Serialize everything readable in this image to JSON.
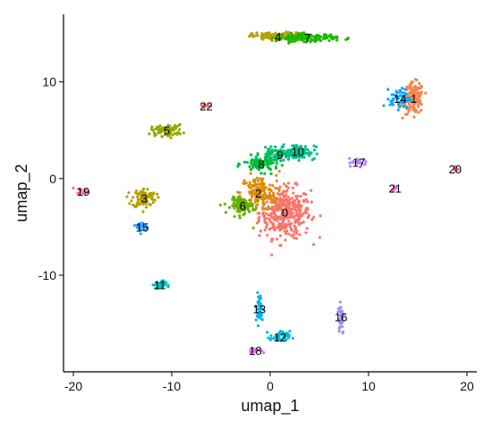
{
  "chart_data": {
    "type": "scatter",
    "title": "",
    "xlabel": "umap_1",
    "ylabel": "umap_2",
    "xlim": [
      -21,
      21
    ],
    "ylim": [
      -20,
      17
    ],
    "x_ticks": [
      -20,
      -10,
      0,
      10,
      20
    ],
    "y_ticks": [
      -10,
      0,
      10
    ],
    "x_tick_labels": [
      "-20",
      "-10",
      "0",
      "10",
      "20"
    ],
    "y_tick_labels": [
      "-10",
      "0",
      "10"
    ],
    "grid": false,
    "legend": "none",
    "series": [
      {
        "label": "0",
        "color": "#F8766D",
        "x": 1.5,
        "y": -3.5,
        "sx": 1.3,
        "sy": 1.3,
        "n": 380
      },
      {
        "label": "1",
        "color": "#F2854E",
        "x": 14.6,
        "y": 8.3,
        "sx": 0.5,
        "sy": 0.8,
        "n": 140
      },
      {
        "label": "2",
        "color": "#DB8E00",
        "x": -1.2,
        "y": -1.5,
        "sx": 0.9,
        "sy": 0.9,
        "n": 130
      },
      {
        "label": "3",
        "color": "#B79F00",
        "x": -12.8,
        "y": -2.0,
        "sx": 0.6,
        "sy": 0.5,
        "n": 90
      },
      {
        "label": "4",
        "color": "#AEA200",
        "x": 0.8,
        "y": 14.7,
        "sx": 1.3,
        "sy": 0.2,
        "n": 150
      },
      {
        "label": "5",
        "color": "#96A900",
        "x": -10.5,
        "y": 5.0,
        "sx": 0.8,
        "sy": 0.3,
        "n": 80
      },
      {
        "label": "6",
        "color": "#64B200",
        "x": -2.8,
        "y": -2.8,
        "sx": 0.6,
        "sy": 0.4,
        "n": 110
      },
      {
        "label": "7",
        "color": "#1CB800",
        "x": 3.8,
        "y": 14.6,
        "sx": 1.5,
        "sy": 0.2,
        "n": 130
      },
      {
        "label": "8",
        "color": "#00BA38",
        "x": -0.9,
        "y": 1.5,
        "sx": 0.9,
        "sy": 0.4,
        "n": 100
      },
      {
        "label": "9",
        "color": "#00BE6C",
        "x": 1.0,
        "y": 2.5,
        "sx": 1.0,
        "sy": 0.3,
        "n": 100
      },
      {
        "label": "10",
        "color": "#00C08B",
        "x": 2.8,
        "y": 2.8,
        "sx": 0.9,
        "sy": 0.4,
        "n": 80
      },
      {
        "label": "11",
        "color": "#00BFC4",
        "x": -11.2,
        "y": -11.0,
        "sx": 0.3,
        "sy": 0.2,
        "n": 40
      },
      {
        "label": "12",
        "color": "#00BCD8",
        "x": 1.0,
        "y": -16.4,
        "sx": 0.5,
        "sy": 0.3,
        "n": 45
      },
      {
        "label": "13",
        "color": "#00B4F0",
        "x": -1.1,
        "y": -13.5,
        "sx": 0.2,
        "sy": 0.8,
        "n": 40
      },
      {
        "label": "14",
        "color": "#00A9FF",
        "x": 13.2,
        "y": 8.3,
        "sx": 0.5,
        "sy": 0.5,
        "n": 60
      },
      {
        "label": "15",
        "color": "#35A2FF",
        "x": -13.0,
        "y": -5.0,
        "sx": 0.3,
        "sy": 0.3,
        "n": 35
      },
      {
        "label": "16",
        "color": "#9590FF",
        "x": 7.2,
        "y": -14.3,
        "sx": 0.15,
        "sy": 0.9,
        "n": 40
      },
      {
        "label": "17",
        "color": "#B983FF",
        "x": 9.0,
        "y": 1.7,
        "sx": 0.5,
        "sy": 0.2,
        "n": 25
      },
      {
        "label": "18",
        "color": "#E76BF3",
        "x": -1.5,
        "y": -17.8,
        "sx": 0.3,
        "sy": 0.1,
        "n": 20
      },
      {
        "label": "19",
        "color": "#FF62BC",
        "x": -19.0,
        "y": -1.3,
        "sx": 0.3,
        "sy": 0.15,
        "n": 15
      },
      {
        "label": "20",
        "color": "#FF6C91",
        "x": 18.8,
        "y": 1.0,
        "sx": 0.2,
        "sy": 0.15,
        "n": 10
      },
      {
        "label": "21",
        "color": "#FB61D7",
        "x": 12.7,
        "y": -1.0,
        "sx": 0.15,
        "sy": 0.15,
        "n": 8
      },
      {
        "label": "22",
        "color": "#F8766D",
        "x": -6.5,
        "y": 7.5,
        "sx": 0.3,
        "sy": 0.1,
        "n": 10
      }
    ]
  }
}
